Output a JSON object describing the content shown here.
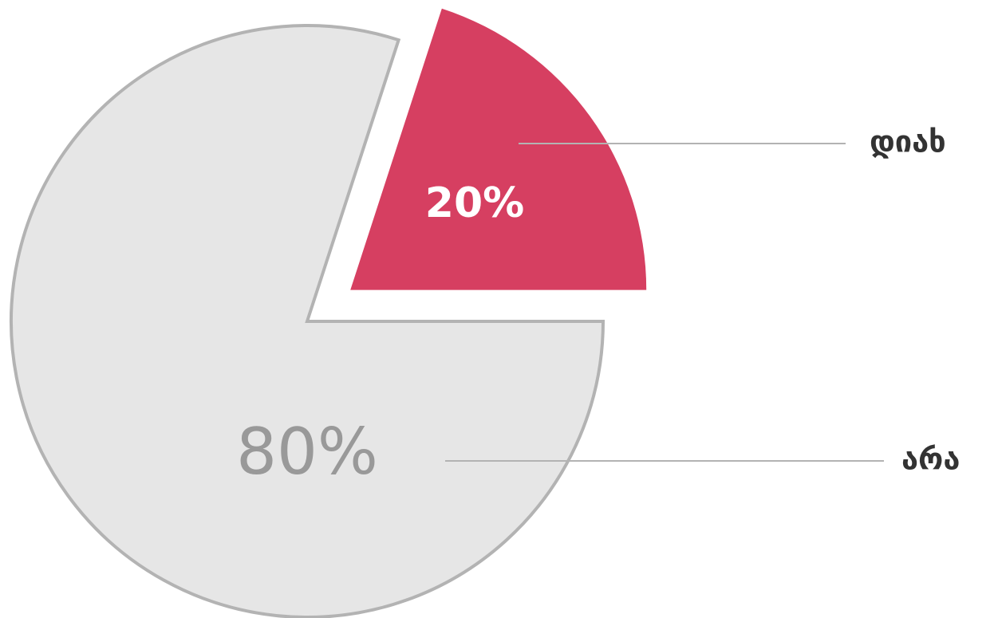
{
  "chart_data": {
    "type": "pie",
    "categories": [
      "დიახ",
      "არა"
    ],
    "values": [
      20,
      80
    ],
    "value_labels": [
      "20%",
      "80%"
    ],
    "colors": [
      "#d63f61",
      "#e6e6e6"
    ]
  }
}
